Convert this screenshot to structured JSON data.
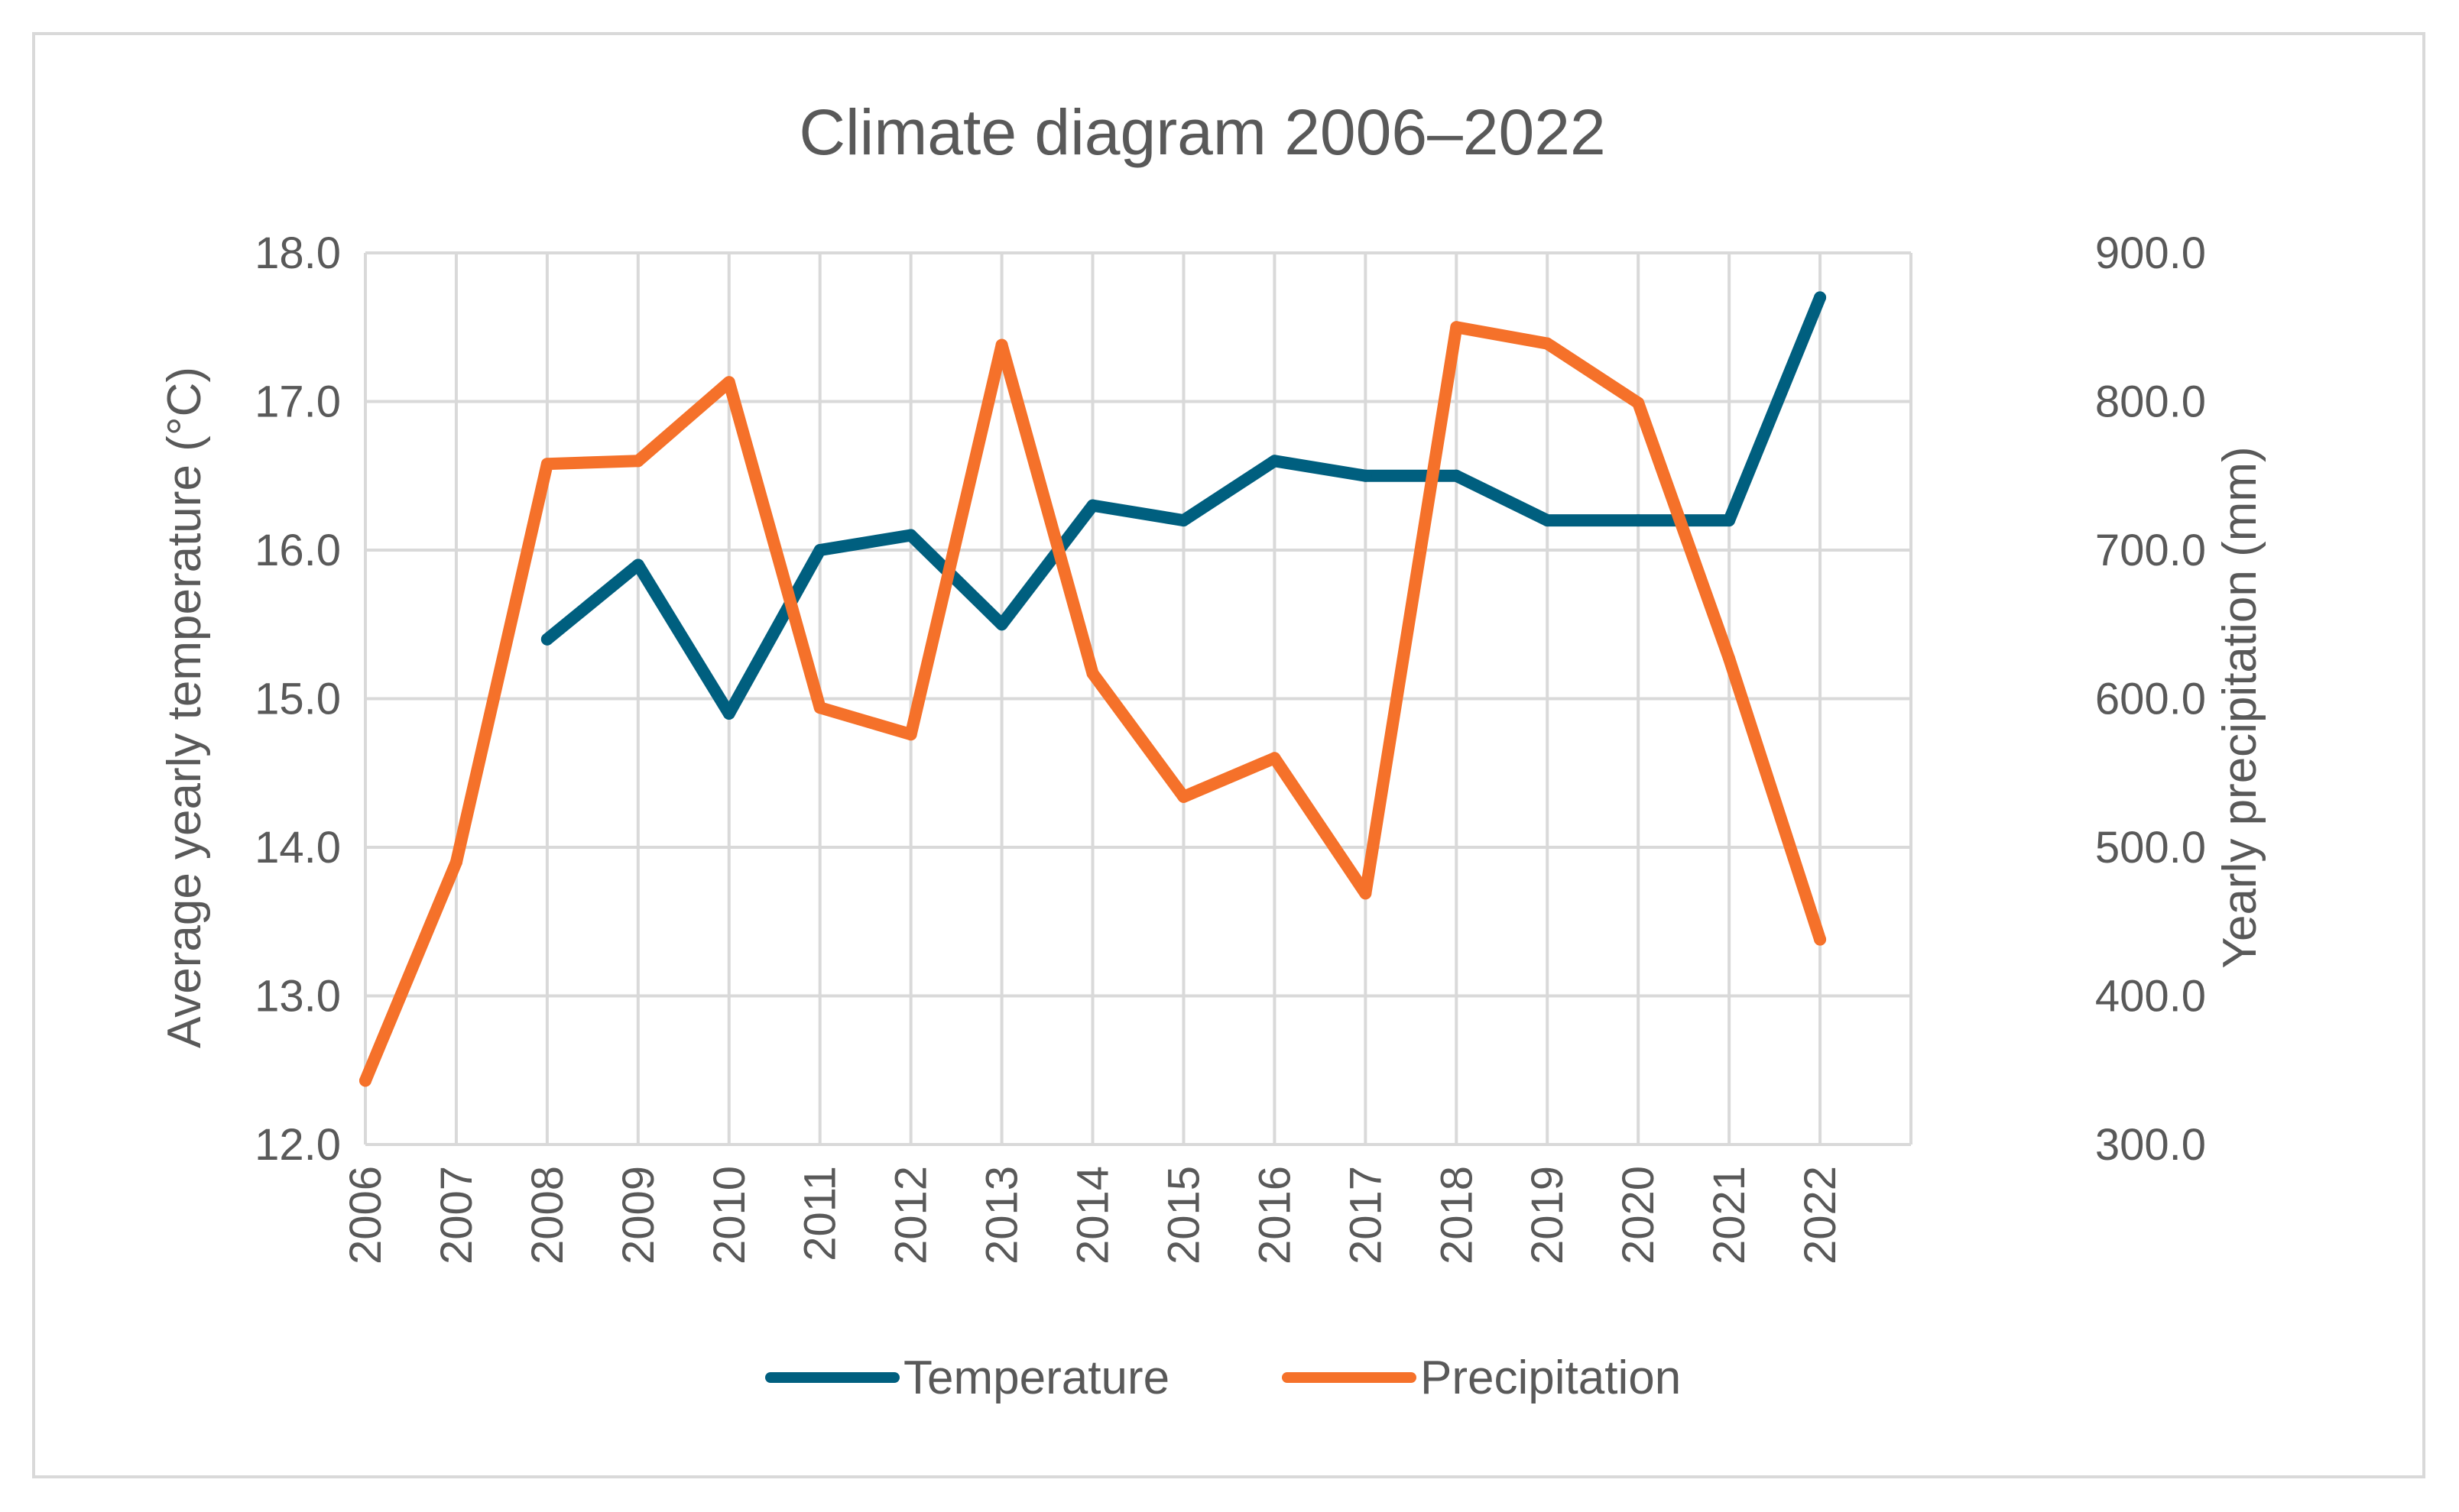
{
  "chart_data": {
    "type": "line",
    "title": "Climate diagram 2006–2022",
    "xlabel": "",
    "ylabel": "Average yearly temperature (°C)",
    "y2label": "Yearly precipitation (mm)",
    "categories": [
      "2006",
      "2007",
      "2008",
      "2009",
      "2010",
      "2011",
      "2012",
      "2013",
      "2014",
      "2015",
      "2016",
      "2017",
      "2018",
      "2019",
      "2020",
      "2021",
      "2022"
    ],
    "ylim": [
      12.0,
      18.0
    ],
    "y2lim": [
      300.0,
      900.0
    ],
    "yticks": [
      "12.0",
      "13.0",
      "14.0",
      "15.0",
      "16.0",
      "17.0",
      "18.0"
    ],
    "y2ticks": [
      "300.0",
      "400.0",
      "500.0",
      "600.0",
      "700.0",
      "800.0",
      "900.0"
    ],
    "grid": true,
    "legend_position": "bottom",
    "series": [
      {
        "name": "Temperature",
        "axis": "left",
        "color": "#005f7f",
        "values": [
          null,
          null,
          15.4,
          15.9,
          14.9,
          16.0,
          16.1,
          15.5,
          16.3,
          16.2,
          16.6,
          16.5,
          16.5,
          16.2,
          16.2,
          16.2,
          17.7
        ]
      },
      {
        "name": "Precipitation",
        "axis": "right",
        "color": "#f5712a",
        "values": [
          343,
          490,
          758,
          760,
          813,
          594,
          576,
          838,
          617,
          534,
          560,
          469,
          850,
          839,
          799,
          627,
          438
        ]
      }
    ]
  }
}
